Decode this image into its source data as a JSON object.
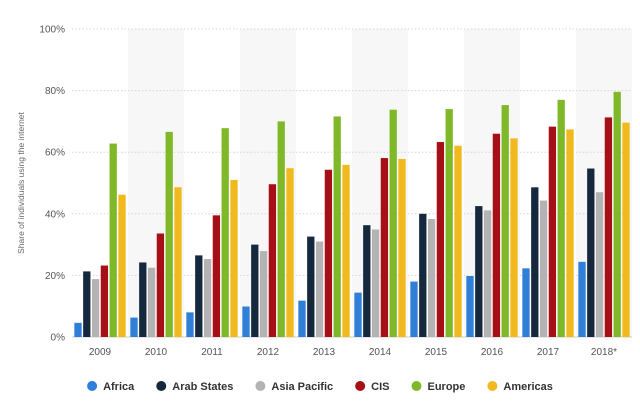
{
  "chart_data": {
    "type": "bar",
    "categories": [
      "2009",
      "2010",
      "2011",
      "2012",
      "2013",
      "2014",
      "2015",
      "2016",
      "2017",
      "2018*"
    ],
    "ylabel": "Share of individuals using the internet",
    "ylim": [
      0,
      100
    ],
    "yticks": [
      "0%",
      "20%",
      "40%",
      "60%",
      "80%",
      "100%"
    ],
    "grid": true,
    "legend_position": "bottom",
    "series": [
      {
        "name": "Africa",
        "color": "#2f7ed8",
        "values": [
          4.6,
          6.3,
          8.0,
          9.9,
          11.8,
          14.4,
          18.0,
          19.8,
          22.3,
          24.4
        ]
      },
      {
        "name": "Arab States",
        "color": "#15283d",
        "values": [
          21.3,
          24.2,
          26.5,
          30.0,
          32.6,
          36.3,
          40.0,
          42.5,
          48.6,
          54.7
        ]
      },
      {
        "name": "Asia Pacific",
        "color": "#b3b3b3",
        "values": [
          18.8,
          22.5,
          25.3,
          27.9,
          31.0,
          34.9,
          38.3,
          41.1,
          44.3,
          47.0
        ]
      },
      {
        "name": "CIS",
        "color": "#a50f15",
        "values": [
          23.2,
          33.6,
          39.5,
          49.6,
          54.3,
          58.1,
          63.3,
          66.0,
          68.3,
          71.3
        ]
      },
      {
        "name": "Europe",
        "color": "#7fb92a",
        "values": [
          62.8,
          66.6,
          67.8,
          70.0,
          71.6,
          73.8,
          74.0,
          75.3,
          77.0,
          79.6
        ]
      },
      {
        "name": "Americas",
        "color": "#f2b91f",
        "values": [
          46.2,
          48.6,
          51.0,
          54.8,
          55.9,
          57.8,
          62.1,
          64.5,
          67.4,
          69.6
        ]
      }
    ]
  }
}
